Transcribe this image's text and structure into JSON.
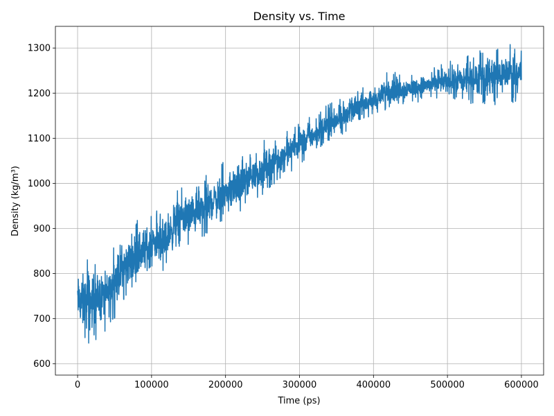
{
  "chart_data": {
    "type": "line",
    "title": "Density vs. Time",
    "xlabel": "Time (ps)",
    "ylabel": "Density (kg/m³)",
    "xlim": [
      -30000,
      630000
    ],
    "ylim": [
      575,
      1348
    ],
    "grid": true,
    "x_ticks": [
      0,
      100000,
      200000,
      300000,
      400000,
      500000,
      600000
    ],
    "x_tick_labels": [
      "0",
      "100000",
      "200000",
      "300000",
      "400000",
      "500000",
      "600000"
    ],
    "y_ticks": [
      600,
      700,
      800,
      900,
      1000,
      1100,
      1200,
      1300
    ],
    "y_tick_labels": [
      "600",
      "700",
      "800",
      "900",
      "1000",
      "1100",
      "1200",
      "1300"
    ],
    "series": [
      {
        "color": "#1f77b4",
        "x": [
          0,
          10000,
          20000,
          30000,
          40000,
          50000,
          60000,
          70000,
          80000,
          90000,
          100000,
          120000,
          140000,
          160000,
          180000,
          200000,
          220000,
          240000,
          260000,
          280000,
          300000,
          320000,
          340000,
          360000,
          380000,
          400000,
          420000,
          440000,
          460000,
          480000,
          500000,
          520000,
          540000,
          560000,
          580000,
          600000
        ],
        "mean": [
          745,
          740,
          740,
          745,
          755,
          775,
          795,
          810,
          825,
          838,
          850,
          875,
          900,
          922,
          945,
          965,
          985,
          1005,
          1025,
          1048,
          1070,
          1090,
          1110,
          1130,
          1152,
          1172,
          1190,
          1203,
          1212,
          1218,
          1222,
          1224,
          1230,
          1236,
          1240,
          1242
        ],
        "low": [
          665,
          615,
          640,
          655,
          670,
          700,
          730,
          745,
          760,
          775,
          790,
          810,
          845,
          865,
          890,
          910,
          935,
          960,
          990,
          1015,
          1040,
          1070,
          1095,
          1110,
          1140,
          1150,
          1165,
          1175,
          1180,
          1185,
          1185,
          1180,
          1172,
          1172,
          1178,
          1180
        ],
        "high": [
          820,
          842,
          838,
          835,
          830,
          870,
          900,
          915,
          930,
          935,
          945,
          960,
          1010,
          1008,
          1030,
          1050,
          1070,
          1080,
          1110,
          1115,
          1140,
          1150,
          1180,
          1195,
          1215,
          1220,
          1250,
          1245,
          1248,
          1255,
          1270,
          1275,
          1300,
          1305,
          1312,
          1310
        ]
      }
    ]
  }
}
